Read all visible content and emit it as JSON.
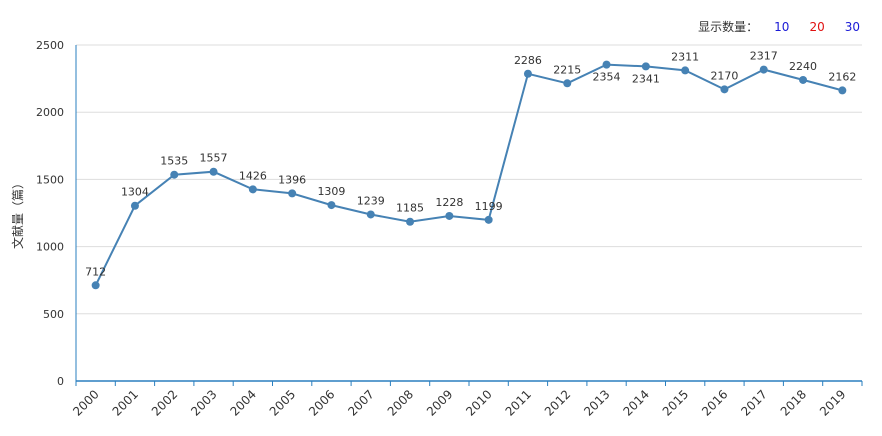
{
  "controls": {
    "label": "显示数量：",
    "options": [
      {
        "label": "10",
        "color": "#1a1ad6"
      },
      {
        "label": "20",
        "color": "#e01010"
      },
      {
        "label": "30",
        "color": "#1a1ad6"
      }
    ]
  },
  "chart_data": {
    "type": "line",
    "title": "",
    "ylabel": "文献量（篇）",
    "xlabel": "",
    "ylim": [
      0,
      2500
    ],
    "yticks": [
      0,
      500,
      1000,
      1500,
      2000,
      2500
    ],
    "grid": true,
    "color": "#4682b4",
    "categories": [
      "2000",
      "2001",
      "2002",
      "2003",
      "2004",
      "2005",
      "2006",
      "2007",
      "2008",
      "2009",
      "2010",
      "2011",
      "2012",
      "2013",
      "2014",
      "2015",
      "2016",
      "2017",
      "2018",
      "2019"
    ],
    "values": [
      712,
      1304,
      1535,
      1557,
      1426,
      1396,
      1309,
      1239,
      1185,
      1228,
      1199,
      2286,
      2215,
      2354,
      2341,
      2311,
      2170,
      2317,
      2240,
      2162
    ],
    "label_below": [
      false,
      false,
      false,
      false,
      false,
      false,
      false,
      false,
      false,
      false,
      false,
      false,
      false,
      true,
      true,
      false,
      false,
      false,
      false,
      false
    ]
  }
}
